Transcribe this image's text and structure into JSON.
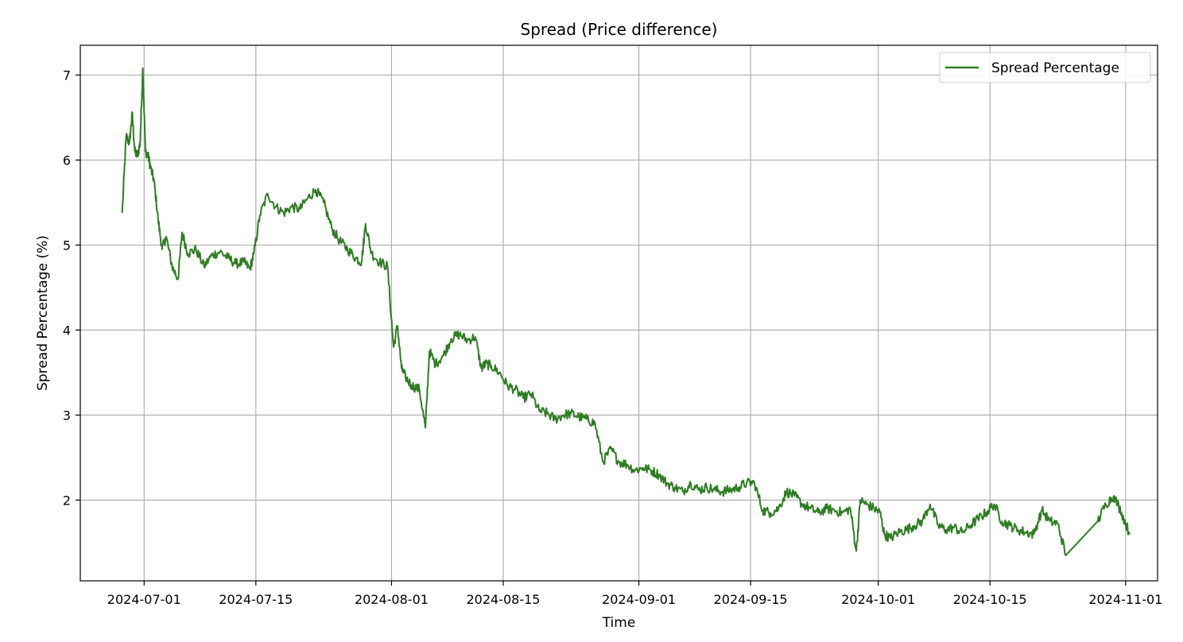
{
  "chart_data": {
    "type": "line",
    "title": "Spread (Price difference)",
    "xlabel": "Time",
    "ylabel": "Spread Percentage (%)",
    "grid": true,
    "legend_position": "top-right",
    "xlim": [
      "2024-06-23",
      "2024-11-05"
    ],
    "ylim": [
      1.05,
      7.35
    ],
    "x_ticks": [
      "2024-07-01",
      "2024-07-15",
      "2024-08-01",
      "2024-08-15",
      "2024-09-01",
      "2024-09-15",
      "2024-10-01",
      "2024-10-15",
      "2024-11-01"
    ],
    "y_ticks": [
      2,
      3,
      4,
      5,
      6,
      7
    ],
    "series": [
      {
        "name": "Spread Percentage",
        "color": "#2e7d22",
        "x": [
          "2024-06-28",
          "2024-06-28",
          "2024-06-29",
          "2024-06-29",
          "2024-06-29",
          "2024-06-30",
          "2024-06-30",
          "2024-06-30",
          "2024-07-01",
          "2024-07-01",
          "2024-07-01",
          "2024-07-02",
          "2024-07-02",
          "2024-07-03",
          "2024-07-03",
          "2024-07-04",
          "2024-07-05",
          "2024-07-05",
          "2024-07-06",
          "2024-07-07",
          "2024-07-08",
          "2024-07-09",
          "2024-07-10",
          "2024-07-11",
          "2024-07-12",
          "2024-07-13",
          "2024-07-14",
          "2024-07-14",
          "2024-07-15",
          "2024-07-16",
          "2024-07-17",
          "2024-07-18",
          "2024-07-19",
          "2024-07-20",
          "2024-07-21",
          "2024-07-22",
          "2024-07-23",
          "2024-07-24",
          "2024-07-25",
          "2024-07-26",
          "2024-07-27",
          "2024-07-28",
          "2024-07-28",
          "2024-07-29",
          "2024-07-30",
          "2024-07-31",
          "2024-08-01",
          "2024-08-01",
          "2024-08-02",
          "2024-08-02",
          "2024-08-03",
          "2024-08-04",
          "2024-08-05",
          "2024-08-05",
          "2024-08-06",
          "2024-08-07",
          "2024-08-08",
          "2024-08-09",
          "2024-08-10",
          "2024-08-11",
          "2024-08-12",
          "2024-08-12",
          "2024-08-13",
          "2024-08-14",
          "2024-08-15",
          "2024-08-16",
          "2024-08-17",
          "2024-08-18",
          "2024-08-19",
          "2024-08-20",
          "2024-08-21",
          "2024-08-22",
          "2024-08-23",
          "2024-08-24",
          "2024-08-25",
          "2024-08-26",
          "2024-08-27",
          "2024-08-28",
          "2024-08-29",
          "2024-08-30",
          "2024-08-31",
          "2024-09-01",
          "2024-09-02",
          "2024-09-03",
          "2024-09-04",
          "2024-09-05",
          "2024-09-06",
          "2024-09-07",
          "2024-09-08",
          "2024-09-09",
          "2024-09-10",
          "2024-09-11",
          "2024-09-12",
          "2024-09-13",
          "2024-09-14",
          "2024-09-15",
          "2024-09-16",
          "2024-09-17",
          "2024-09-18",
          "2024-09-19",
          "2024-09-20",
          "2024-09-21",
          "2024-09-22",
          "2024-09-23",
          "2024-09-24",
          "2024-09-25",
          "2024-09-26",
          "2024-09-27",
          "2024-09-28",
          "2024-09-28",
          "2024-09-29",
          "2024-09-30",
          "2024-10-01",
          "2024-10-01",
          "2024-10-02",
          "2024-10-03",
          "2024-10-04",
          "2024-10-05",
          "2024-10-06",
          "2024-10-07",
          "2024-10-08",
          "2024-10-09",
          "2024-10-10",
          "2024-10-11",
          "2024-10-12",
          "2024-10-13",
          "2024-10-14",
          "2024-10-15",
          "2024-10-16",
          "2024-10-17",
          "2024-10-18",
          "2024-10-19",
          "2024-10-20",
          "2024-10-21",
          "2024-10-22",
          "2024-10-23",
          "2024-10-24",
          "2024-10-28",
          "2024-10-29",
          "2024-10-30",
          "2024-10-31",
          "2024-11-01"
        ],
        "y": [
          5.38,
          6.28,
          6.2,
          6.55,
          6.1,
          6.05,
          6.2,
          7.08,
          6.1,
          6.05,
          5.9,
          5.75,
          5.3,
          4.95,
          5.1,
          4.75,
          4.6,
          5.15,
          4.9,
          4.95,
          4.75,
          4.88,
          4.92,
          4.85,
          4.78,
          4.8,
          4.72,
          4.9,
          5.35,
          5.6,
          5.45,
          5.38,
          5.45,
          5.42,
          5.55,
          5.65,
          5.5,
          5.2,
          5.05,
          4.95,
          4.85,
          4.8,
          5.25,
          4.9,
          4.8,
          4.75,
          3.8,
          4.05,
          3.55,
          3.45,
          3.35,
          3.3,
          2.85,
          3.75,
          3.6,
          3.7,
          3.9,
          3.95,
          3.88,
          3.92,
          3.55,
          3.6,
          3.58,
          3.5,
          3.35,
          3.3,
          3.2,
          3.25,
          3.05,
          3.02,
          2.95,
          3.0,
          3.02,
          2.98,
          2.95,
          2.9,
          2.45,
          2.6,
          2.45,
          2.42,
          2.35,
          2.38,
          2.35,
          2.3,
          2.2,
          2.15,
          2.1,
          2.2,
          2.12,
          2.15,
          2.12,
          2.1,
          2.12,
          2.15,
          2.2,
          2.2,
          1.88,
          1.85,
          1.9,
          2.1,
          2.05,
          1.95,
          1.9,
          1.85,
          1.9,
          1.88,
          1.85,
          1.9,
          1.4,
          2.0,
          1.95,
          1.9,
          1.85,
          1.6,
          1.55,
          1.62,
          1.65,
          1.7,
          1.75,
          1.95,
          1.7,
          1.65,
          1.68,
          1.62,
          1.7,
          1.78,
          1.85,
          1.95,
          1.75,
          1.7,
          1.65,
          1.62,
          1.6,
          1.88,
          1.75,
          1.72,
          1.35,
          1.75,
          1.95,
          2.05,
          1.85,
          1.6
        ]
      }
    ]
  }
}
